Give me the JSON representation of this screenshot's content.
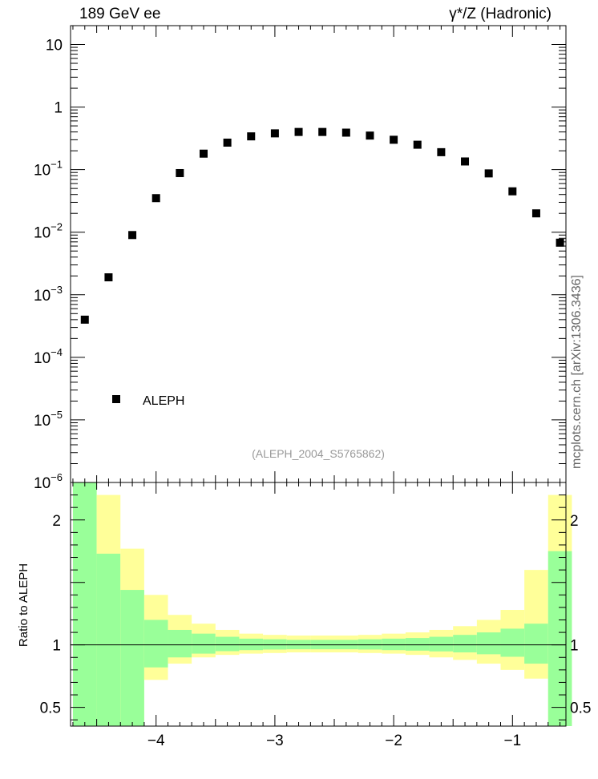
{
  "header": {
    "left_label": "189 GeV ee",
    "right_label": "γ*/Z (Hadronic)"
  },
  "side_label": "mcplots.cern.ch [arXiv:1306.3436]",
  "analysis_label": "(ALEPH_2004_S5765862)",
  "colors": {
    "marker": "#000000",
    "band_inner": "#99ff99",
    "band_outer": "#ffff99",
    "analysis_label": "#999999"
  },
  "chart_data": [
    {
      "type": "scatter",
      "log_y": true,
      "xlim": [
        -4.72,
        -0.55
      ],
      "ylim": [
        1e-06,
        20
      ],
      "y_tick_labels": [
        {
          "v": 1e-06,
          "base": "10",
          "exp": "−6"
        },
        {
          "v": 1e-05,
          "base": "10",
          "exp": "−5"
        },
        {
          "v": 0.0001,
          "base": "10",
          "exp": "−4"
        },
        {
          "v": 0.001,
          "base": "10",
          "exp": "−3"
        },
        {
          "v": 0.01,
          "base": "10",
          "exp": "−2"
        },
        {
          "v": 0.1,
          "base": "10",
          "exp": "−1"
        },
        {
          "v": 1,
          "base": "1",
          "exp": ""
        },
        {
          "v": 10,
          "base": "10",
          "exp": ""
        }
      ],
      "legend": [
        "ALEPH"
      ],
      "legend_position": "bottom-left",
      "series": [
        {
          "name": "ALEPH",
          "x": [
            -4.6,
            -4.4,
            -4.2,
            -4.0,
            -3.8,
            -3.6,
            -3.4,
            -3.2,
            -3.0,
            -2.8,
            -2.6,
            -2.4,
            -2.2,
            -2.0,
            -1.8,
            -1.6,
            -1.4,
            -1.2,
            -1.0,
            -0.8,
            -0.6
          ],
          "y": [
            0.0004,
            0.0019,
            0.009,
            0.035,
            0.088,
            0.18,
            0.27,
            0.34,
            0.38,
            0.4,
            0.4,
            0.39,
            0.35,
            0.3,
            0.25,
            0.19,
            0.135,
            0.087,
            0.045,
            0.02,
            0.0068
          ]
        }
      ]
    },
    {
      "type": "area",
      "xlim": [
        -4.72,
        -0.55
      ],
      "ylim": [
        0.35,
        2.3
      ],
      "ylabel": "Ratio to ALEPH",
      "y_tick_labels": [
        "0.5",
        "1",
        "2"
      ],
      "y_tick_values": [
        0.5,
        1,
        2
      ],
      "x_tick_labels": [
        "−4",
        "−3",
        "−2",
        "−1"
      ],
      "x_tick_values": [
        -4,
        -3,
        -2,
        -1
      ],
      "reference_line": 1,
      "bins": {
        "edges": [
          -4.7,
          -4.5,
          -4.3,
          -4.1,
          -3.9,
          -3.7,
          -3.5,
          -3.3,
          -3.1,
          -2.9,
          -2.7,
          -2.5,
          -2.3,
          -2.1,
          -1.9,
          -1.7,
          -1.5,
          -1.3,
          -1.1,
          -0.9,
          -0.7,
          -0.5
        ],
        "inner_upper": [
          2.3,
          1.73,
          1.44,
          1.2,
          1.12,
          1.09,
          1.065,
          1.05,
          1.045,
          1.04,
          1.04,
          1.04,
          1.045,
          1.05,
          1.055,
          1.065,
          1.08,
          1.1,
          1.13,
          1.17,
          1.75
        ],
        "inner_lower": [
          0.35,
          0.35,
          0.35,
          0.82,
          0.9,
          0.93,
          0.95,
          0.958,
          0.963,
          0.965,
          0.965,
          0.965,
          0.963,
          0.958,
          0.954,
          0.948,
          0.94,
          0.925,
          0.905,
          0.85,
          0.35
        ],
        "outer_upper": [
          2.3,
          2.2,
          1.77,
          1.4,
          1.24,
          1.17,
          1.12,
          1.09,
          1.08,
          1.075,
          1.075,
          1.075,
          1.08,
          1.09,
          1.1,
          1.12,
          1.15,
          1.2,
          1.28,
          1.6,
          2.2
        ],
        "outer_lower": [
          0.35,
          0.35,
          0.35,
          0.72,
          0.85,
          0.9,
          0.92,
          0.93,
          0.935,
          0.94,
          0.94,
          0.94,
          0.935,
          0.93,
          0.92,
          0.9,
          0.88,
          0.85,
          0.8,
          0.73,
          0.35
        ]
      }
    }
  ]
}
